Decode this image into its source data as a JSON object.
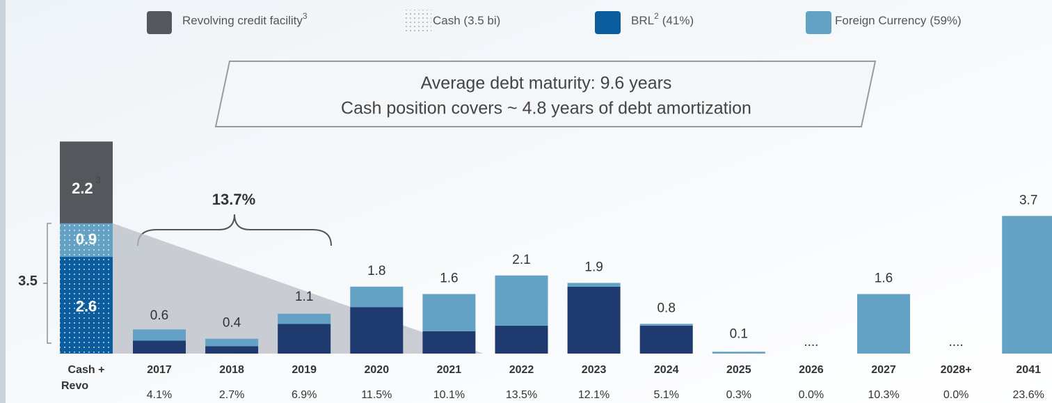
{
  "chart_data": {
    "type": "stacked_bar",
    "annotation": [
      "Average debt maturity: 9.6 years",
      "Cash position covers ~ 4.8 years of debt amortization"
    ],
    "bracket_label": "13.7%",
    "cash_column": {
      "label": [
        "Cash +",
        "Revo"
      ],
      "revolving": {
        "name": "Revolving credit facility",
        "sup": "3",
        "value": 2.2,
        "value_sup": "3",
        "color": "#54585c"
      },
      "cash_name": "Cash (3.5 bi)",
      "cash_foreign": 0.9,
      "cash_brl": 2.6,
      "cash_brl_color": "#0b5c9c",
      "cash_total": 3.5
    },
    "categories": [
      "2017",
      "2018",
      "2019",
      "2020",
      "2021",
      "2022",
      "2023",
      "2024",
      "2025",
      "2026",
      "2027",
      "2028+",
      "2041"
    ],
    "series": [
      {
        "name": "BRL",
        "sup": "2",
        "note": "(41%)",
        "color": "#1f3a6e",
        "values": [
          0.35,
          0.2,
          0.8,
          1.25,
          0.6,
          0.75,
          1.8,
          0.75,
          0,
          0,
          0,
          0,
          0
        ]
      },
      {
        "name": "Foreign Currency",
        "note": "(59%)",
        "color": "#63a2c5",
        "values": [
          0.3,
          0.2,
          0.27,
          0.55,
          1.0,
          1.35,
          0.1,
          0.05,
          0.05,
          0,
          1.6,
          0,
          3.7
        ]
      }
    ],
    "totals": [
      0.6,
      0.4,
      1.1,
      1.8,
      1.6,
      2.1,
      1.9,
      0.8,
      0.1,
      null,
      1.6,
      null,
      3.7
    ],
    "value_labels": [
      "0.6",
      "0.4",
      "1.1",
      "1.8",
      "1.6",
      "2.1",
      "1.9",
      "0.8",
      "0.1",
      "....",
      "1.6",
      "....",
      "3.7"
    ],
    "shares": [
      4.1,
      2.7,
      6.9,
      11.5,
      10.1,
      13.5,
      12.1,
      5.1,
      0.3,
      0.0,
      10.3,
      0.0,
      23.6
    ],
    "share_labels": [
      "4.1%",
      "2.7%",
      "6.9%",
      "11.5%",
      "10.1%",
      "13.5%",
      "12.1%",
      "5.1%",
      "0.3%",
      "0.0%",
      "10.3%",
      "0.0%",
      "23.6%"
    ],
    "ylim": [
      0,
      5.8
    ]
  }
}
